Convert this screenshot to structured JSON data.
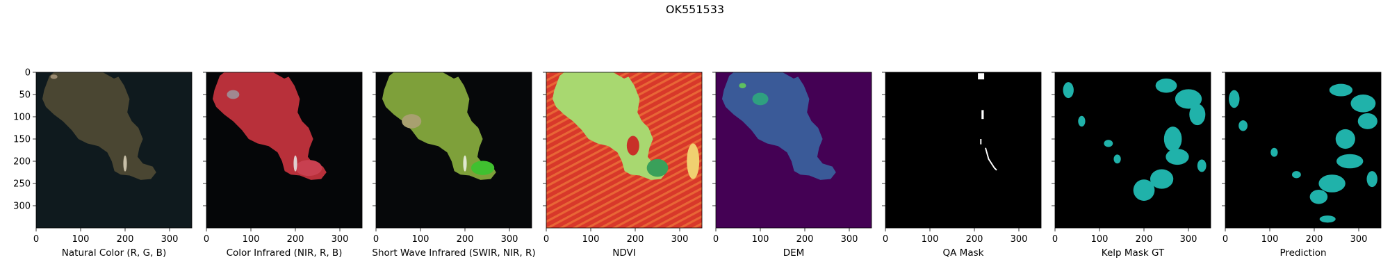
{
  "figure": {
    "title": "OK551533",
    "x_ticks": [
      "0",
      "100",
      "200",
      "300"
    ],
    "y_ticks": [
      "0",
      "50",
      "100",
      "150",
      "200",
      "250",
      "300"
    ],
    "panels": [
      {
        "label": "Natural Color (R, G, B)",
        "kind": "natural"
      },
      {
        "label": "Color Infrared (NIR, R, B)",
        "kind": "cir"
      },
      {
        "label": "Short Wave Infrared (SWIR, NIR, R)",
        "kind": "swir"
      },
      {
        "label": "NDVI",
        "kind": "ndvi"
      },
      {
        "label": "DEM",
        "kind": "dem"
      },
      {
        "label": "QA Mask",
        "kind": "qa"
      },
      {
        "label": "Kelp Mask GT",
        "kind": "kelp"
      },
      {
        "label": "Prediction",
        "kind": "pred"
      }
    ]
  },
  "colors": {
    "natural_land": "#4a4632",
    "natural_water": "#0f1a1e",
    "cir_land": "#b8303a",
    "cir_water": "#050608",
    "swir_land": "#7ea03a",
    "swir_water": "#06080a",
    "ndvi_land": "#a8d870",
    "ndvi_water": "#d8382a",
    "dem_land": "#3a5a98",
    "dem_water": "#440154",
    "mask_bg": "#000000",
    "qa_fg": "#ffffff",
    "kelp_fg": "#20b2aa"
  }
}
